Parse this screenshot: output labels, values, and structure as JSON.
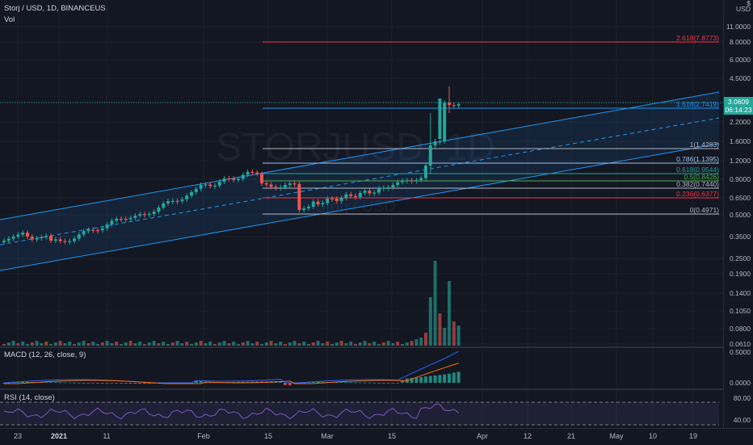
{
  "header": {
    "symbol_line": "Storj / USD, 1D, BINANCEUS",
    "vol_label": "Vol",
    "macd_label": "MACD (12, 26, close, 9)",
    "rsi_label": "RSI (14, close)",
    "watermark_symbol": "STORJUSD, 1D",
    "watermark_name": "Storj / USD"
  },
  "axis": {
    "currency": "USD",
    "currency_symbol": "$",
    "price_ticks": [
      "11.0000",
      "8.0000",
      "6.0000",
      "4.5000",
      "3.0600",
      "2.2000",
      "1.6000",
      "1.2000",
      "0.9000",
      "0.6500",
      "0.5000",
      "0.3500",
      "0.2500",
      "0.1900",
      "0.1400",
      "0.1050",
      "0.0800",
      "0.0610"
    ],
    "current_price": "3.0609",
    "countdown": "06:14:23",
    "macd_ticks": [
      "0.5000",
      "0.0000"
    ],
    "rsi_ticks": [
      "80.00",
      "40.00"
    ]
  },
  "time_axis": [
    "23",
    "2021",
    "11",
    "Feb",
    "15",
    "Mar",
    "15",
    "Apr",
    "12",
    "21",
    "May",
    "10",
    "19"
  ],
  "fib_levels": [
    {
      "label": "2.618(7.8773)",
      "color": "#f23645"
    },
    {
      "label": "1.618(2.7419)",
      "color": "#2196f3"
    },
    {
      "label": "1(1.4283)",
      "color": "#b2b5be"
    },
    {
      "label": "0.786(1.1395)",
      "color": "#9ec3f0"
    },
    {
      "label": "0.618(0.9544)",
      "color": "#26a69a"
    },
    {
      "label": "0.5(0.8426)",
      "color": "#4caf50"
    },
    {
      "label": "0.382(0.7440)",
      "color": "#b2b5be"
    },
    {
      "label": "0.236(0.6377)",
      "color": "#f23645"
    },
    {
      "label": "0(0.4971)",
      "color": "#b2b5be"
    }
  ],
  "colors": {
    "up": "#26a69a",
    "down": "#ef5350",
    "channel": "#2196f3",
    "macd": "#2962ff",
    "signal": "#ff6d00",
    "rsi": "#7e57c2"
  }
}
